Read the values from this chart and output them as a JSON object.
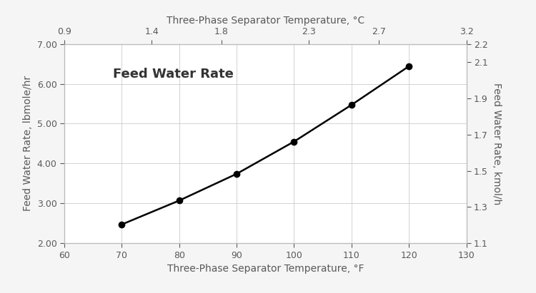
{
  "x_F": [
    70,
    80,
    90,
    100,
    110,
    120
  ],
  "y_lbmole": [
    2.47,
    3.07,
    3.74,
    4.55,
    5.47,
    6.44
  ],
  "xlim_F": [
    60,
    130
  ],
  "ylim_lbmole": [
    2.0,
    7.0
  ],
  "xlim_C": [
    0.9,
    3.2
  ],
  "ylim_kmol": [
    1.1,
    2.2
  ],
  "xlabel_bottom": "Three-Phase Separator Temperature, °F",
  "xlabel_top": "Three-Phase Separator Temperature, °C",
  "ylabel_left": "Feed Water Rate, lbmole/hr",
  "ylabel_right": "Feed Water Rate, kmol/h",
  "annotation": "Feed Water Rate",
  "line_color": "#000000",
  "marker": "o",
  "marker_size": 6,
  "marker_facecolor": "#000000",
  "grid_color": "#cccccc",
  "background_color": "#f5f5f5",
  "plot_bg_color": "#ffffff",
  "xticks_bottom": [
    60,
    70,
    80,
    90,
    100,
    110,
    120,
    130
  ],
  "xticks_top": [
    0.9,
    1.4,
    1.8,
    2.3,
    2.7,
    3.2
  ],
  "yticks_left": [
    2.0,
    3.0,
    4.0,
    5.0,
    6.0,
    7.0
  ],
  "yticks_left_labels": [
    "2.00",
    "3.00",
    "4.00",
    "5.00",
    "6.00",
    "7.00"
  ],
  "yticks_right": [
    1.1,
    1.3,
    1.5,
    1.7,
    1.9,
    2.1,
    2.2
  ],
  "yticks_right_labels": [
    "1.1",
    "1.3",
    "1.5",
    "1.7",
    "1.9",
    "2.1",
    "2.2"
  ],
  "tick_label_color": "#595959",
  "axis_label_color": "#595959",
  "figsize": [
    7.5,
    4.11
  ],
  "dpi": 100
}
